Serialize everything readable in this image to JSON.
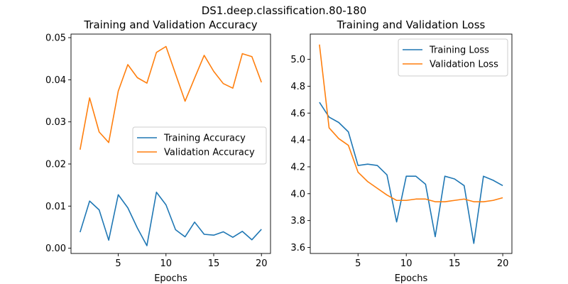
{
  "figure": {
    "suptitle": "DS1.deep.classification.80-180"
  },
  "colors": {
    "training": "#1f77b4",
    "validation": "#ff7f0e"
  },
  "chart_data": [
    {
      "type": "line",
      "title": "Training and Validation Accuracy",
      "xlabel": "Epochs",
      "ylabel": "",
      "x": [
        1,
        2,
        3,
        4,
        5,
        6,
        7,
        8,
        9,
        10,
        11,
        12,
        13,
        14,
        15,
        16,
        17,
        18,
        19,
        20
      ],
      "xlim": [
        0.05,
        20.95
      ],
      "ylim": [
        -0.00125,
        0.05085
      ],
      "xticks": [
        5,
        10,
        15,
        20
      ],
      "xtick_labels": [
        "5",
        "10",
        "15",
        "20"
      ],
      "yticks": [
        0.0,
        0.01,
        0.02,
        0.03,
        0.04,
        0.05
      ],
      "ytick_labels": [
        "0.00",
        "0.01",
        "0.02",
        "0.03",
        "0.04",
        "0.05"
      ],
      "grid": false,
      "legend_position": "center-right",
      "series": [
        {
          "name": "Training Accuracy",
          "color_key": "training",
          "values": [
            0.0038,
            0.0112,
            0.0091,
            0.0019,
            0.0127,
            0.0096,
            0.0048,
            0.0006,
            0.0133,
            0.0103,
            0.0044,
            0.0027,
            0.0062,
            0.0033,
            0.0031,
            0.0039,
            0.0026,
            0.004,
            0.002,
            0.0045
          ]
        },
        {
          "name": "Validation Accuracy",
          "color_key": "validation",
          "values": [
            0.0234,
            0.0357,
            0.0276,
            0.0251,
            0.0373,
            0.0436,
            0.0405,
            0.0392,
            0.0465,
            0.0479,
            0.0414,
            0.0349,
            0.0404,
            0.0458,
            0.042,
            0.0391,
            0.038,
            0.0462,
            0.0455,
            0.0394
          ]
        }
      ]
    },
    {
      "type": "line",
      "title": "Training and Validation Loss",
      "xlabel": "Epochs",
      "ylabel": "",
      "x": [
        1,
        2,
        3,
        4,
        5,
        6,
        7,
        8,
        9,
        10,
        11,
        12,
        13,
        14,
        15,
        16,
        17,
        18,
        19,
        20
      ],
      "xlim": [
        0.05,
        20.95
      ],
      "ylim": [
        3.555,
        5.188
      ],
      "xticks": [
        5,
        10,
        15,
        20
      ],
      "xtick_labels": [
        "5",
        "10",
        "15",
        "20"
      ],
      "yticks": [
        3.6,
        3.8,
        4.0,
        4.2,
        4.4,
        4.6,
        4.8,
        5.0
      ],
      "ytick_labels": [
        "3.6",
        "3.8",
        "4.0",
        "4.2",
        "4.4",
        "4.6",
        "4.8",
        "5.0"
      ],
      "grid": false,
      "legend_position": "upper-right",
      "series": [
        {
          "name": "Training Loss",
          "color_key": "training",
          "values": [
            4.68,
            4.57,
            4.53,
            4.46,
            4.21,
            4.22,
            4.21,
            4.14,
            3.79,
            4.13,
            4.13,
            4.07,
            3.68,
            4.13,
            4.11,
            4.06,
            3.63,
            4.13,
            4.1,
            4.06
          ]
        },
        {
          "name": "Validation Loss",
          "color_key": "validation",
          "values": [
            5.11,
            4.49,
            4.41,
            4.36,
            4.16,
            4.09,
            4.04,
            3.99,
            3.95,
            3.95,
            3.96,
            3.96,
            3.94,
            3.94,
            3.95,
            3.96,
            3.94,
            3.94,
            3.95,
            3.97
          ]
        }
      ]
    }
  ]
}
